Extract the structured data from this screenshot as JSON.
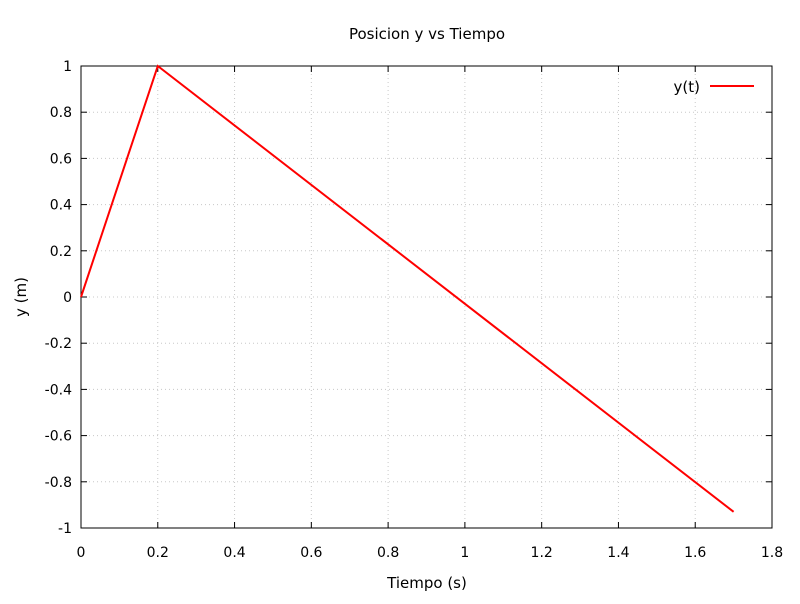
{
  "chart_data": {
    "type": "line",
    "title": "Posicion y vs Tiempo",
    "xlabel": "Tiempo (s)",
    "ylabel": "y (m)",
    "xlim": [
      0,
      1.8
    ],
    "ylim": [
      -1,
      1
    ],
    "xticks": [
      0,
      0.2,
      0.4,
      0.6,
      0.8,
      1,
      1.2,
      1.4,
      1.6,
      1.8
    ],
    "xtick_labels": [
      "0",
      "0.2",
      "0.4",
      "0.6",
      "0.8",
      "1",
      "1.2",
      "1.4",
      "1.6",
      "1.8"
    ],
    "yticks": [
      -1,
      -0.8,
      -0.6,
      -0.4,
      -0.2,
      0,
      0.2,
      0.4,
      0.6,
      0.8,
      1
    ],
    "ytick_labels": [
      "-1",
      "-0.8",
      "-0.6",
      "-0.4",
      "-0.2",
      "0",
      "0.2",
      "0.4",
      "0.6",
      "0.8",
      "1"
    ],
    "grid": true,
    "legend_position": "top-right",
    "series": [
      {
        "name": "y(t)",
        "color": "#ff0000",
        "x": [
          0,
          0.2,
          1.7
        ],
        "y": [
          0,
          1,
          -0.93
        ]
      }
    ]
  }
}
